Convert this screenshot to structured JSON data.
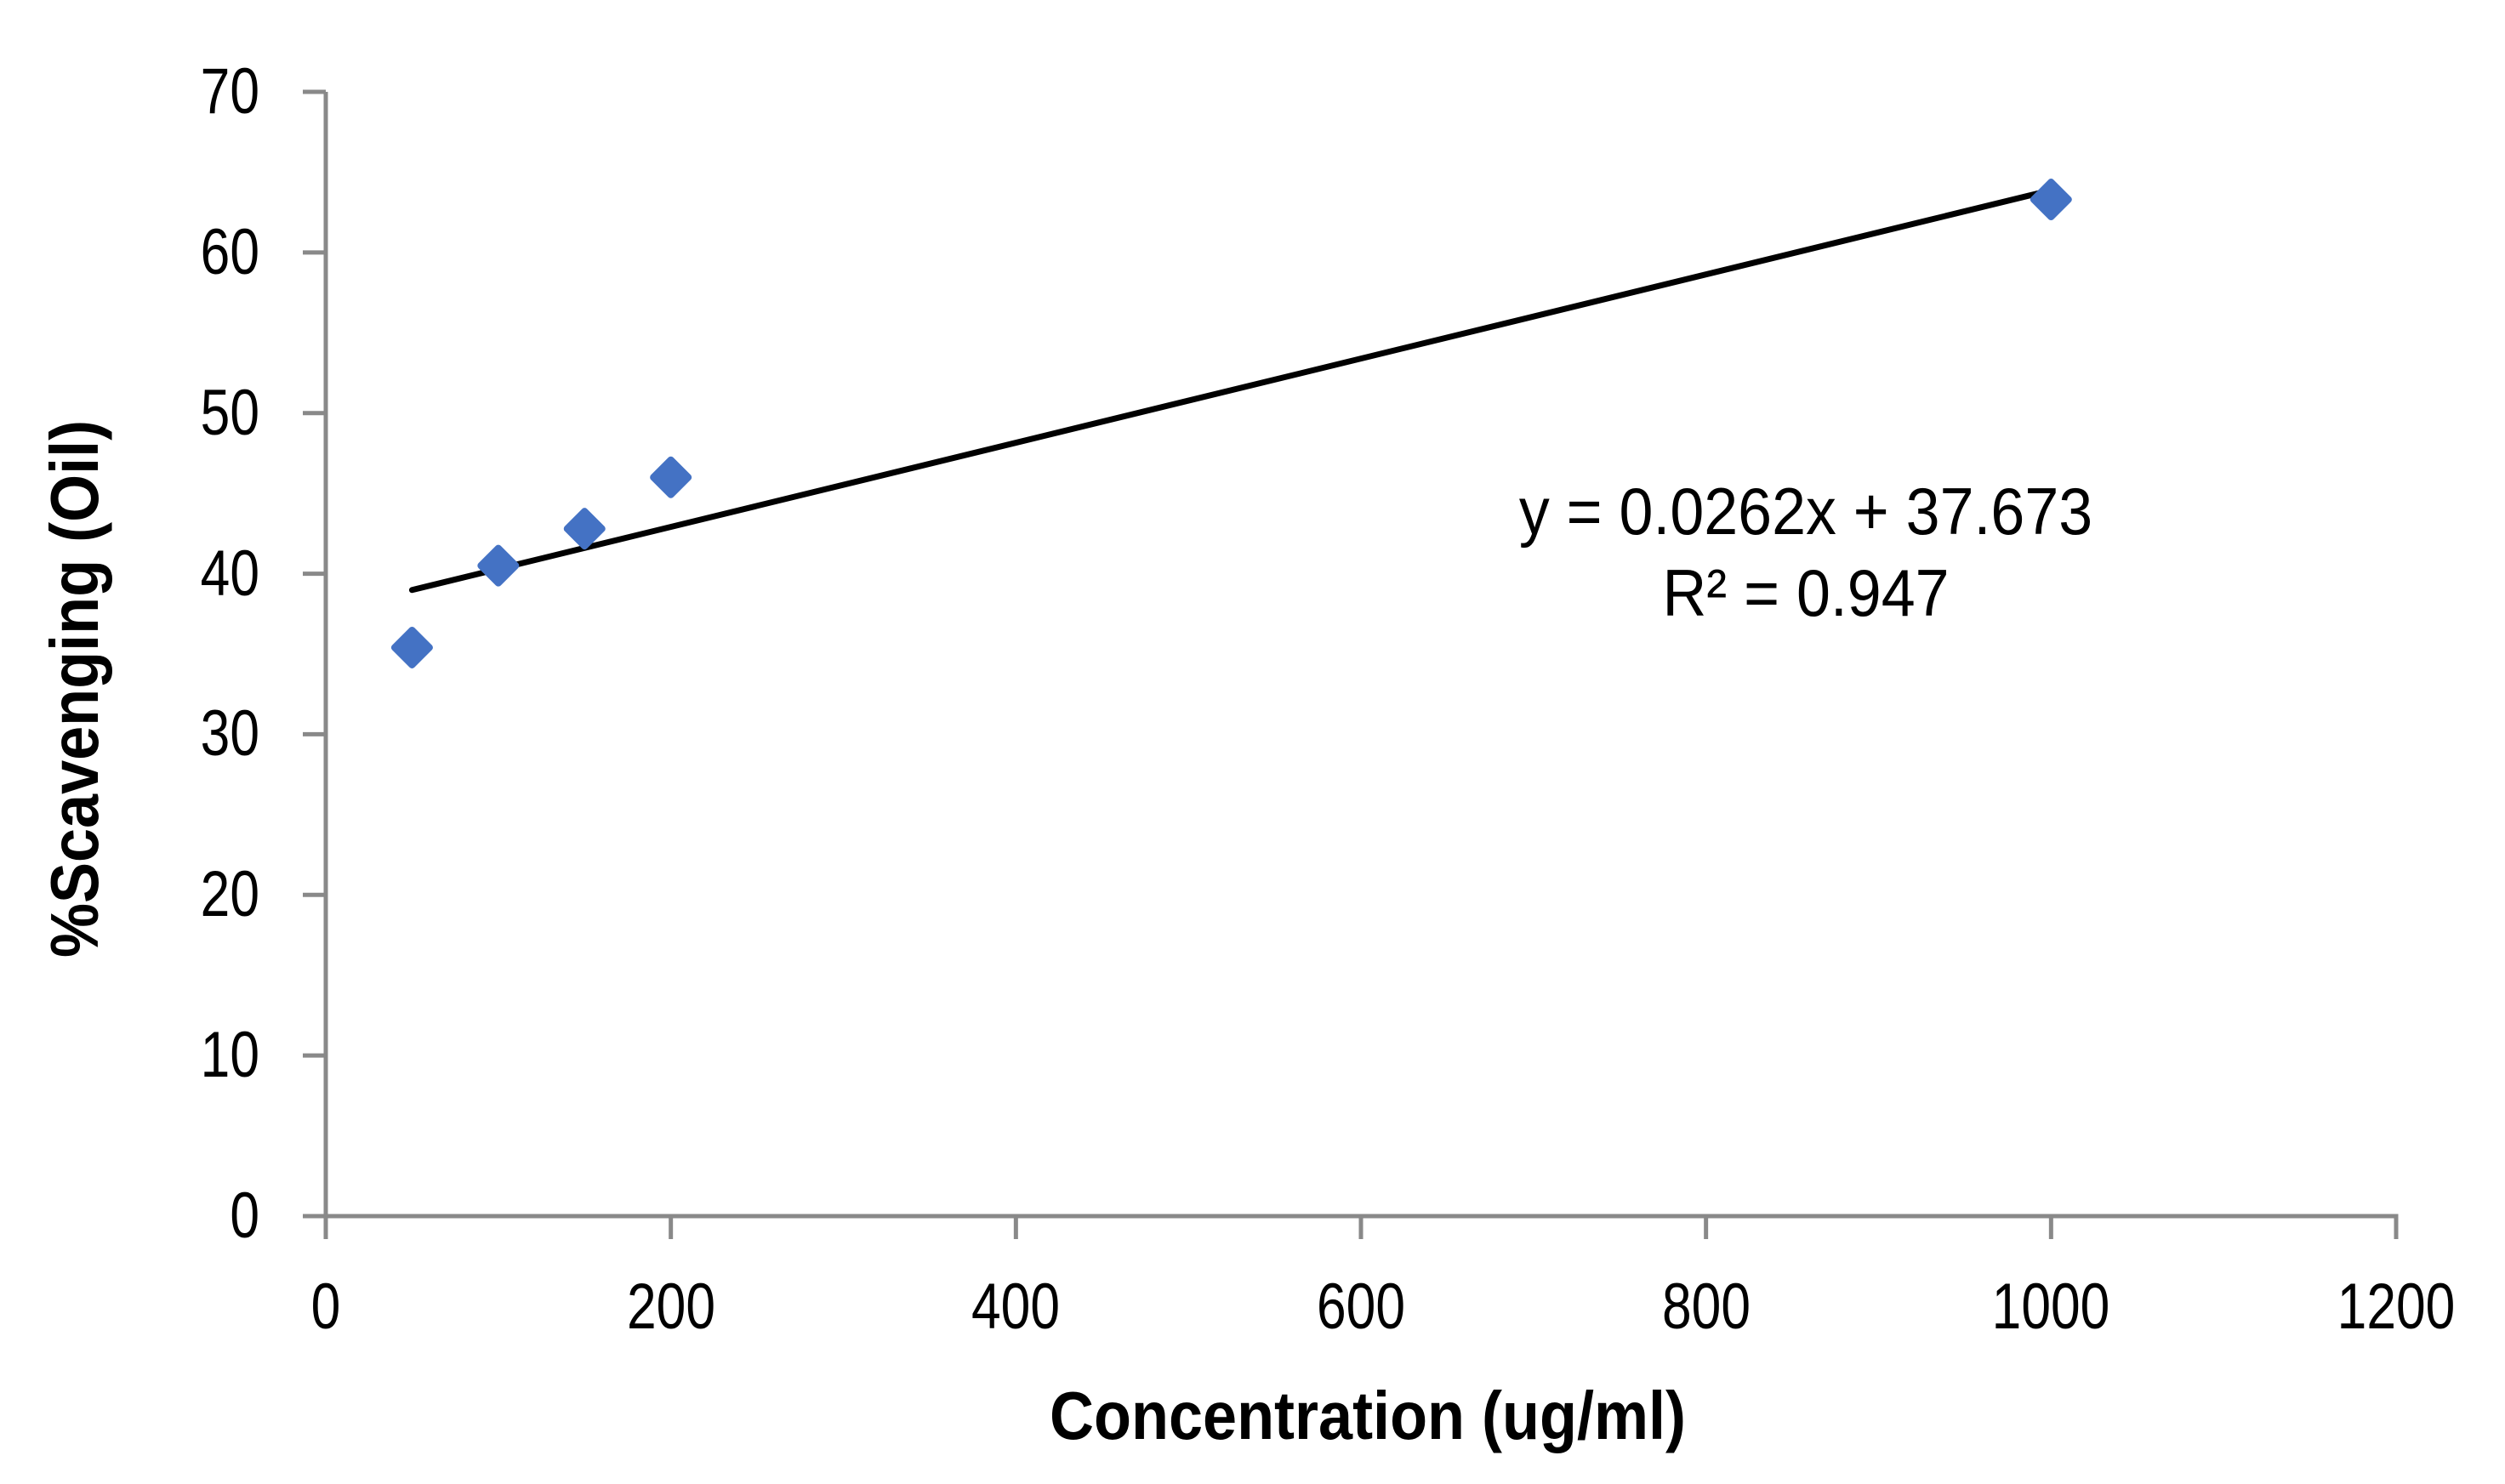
{
  "colors": {
    "background": "#ffffff",
    "axis": "#898989",
    "marker": "#4472C4",
    "trendline": "#000000",
    "text": "#000000"
  },
  "chart_data": {
    "type": "scatter",
    "title": "",
    "xlabel": "Concentration (ug/ml)",
    "ylabel": "%Scavenging (Oil)",
    "xlim": [
      0,
      1200
    ],
    "ylim": [
      0,
      70
    ],
    "x_ticks": [
      0,
      200,
      400,
      600,
      800,
      1000,
      1200
    ],
    "y_ticks": [
      0,
      10,
      20,
      30,
      40,
      50,
      60,
      70
    ],
    "grid": false,
    "legend": "none",
    "marker_shape": "diamond",
    "points": [
      {
        "x": 50,
        "y": 35.4
      },
      {
        "x": 100,
        "y": 40.5
      },
      {
        "x": 150,
        "y": 42.8
      },
      {
        "x": 200,
        "y": 46.0
      },
      {
        "x": 1000,
        "y": 63.3
      }
    ],
    "trendline": {
      "slope": 0.0262,
      "intercept": 37.673,
      "x_start": 50,
      "x_end": 1000,
      "equation_label": "y = 0.0262x + 37.673",
      "r_squared_label": "R² = 0.947"
    }
  }
}
